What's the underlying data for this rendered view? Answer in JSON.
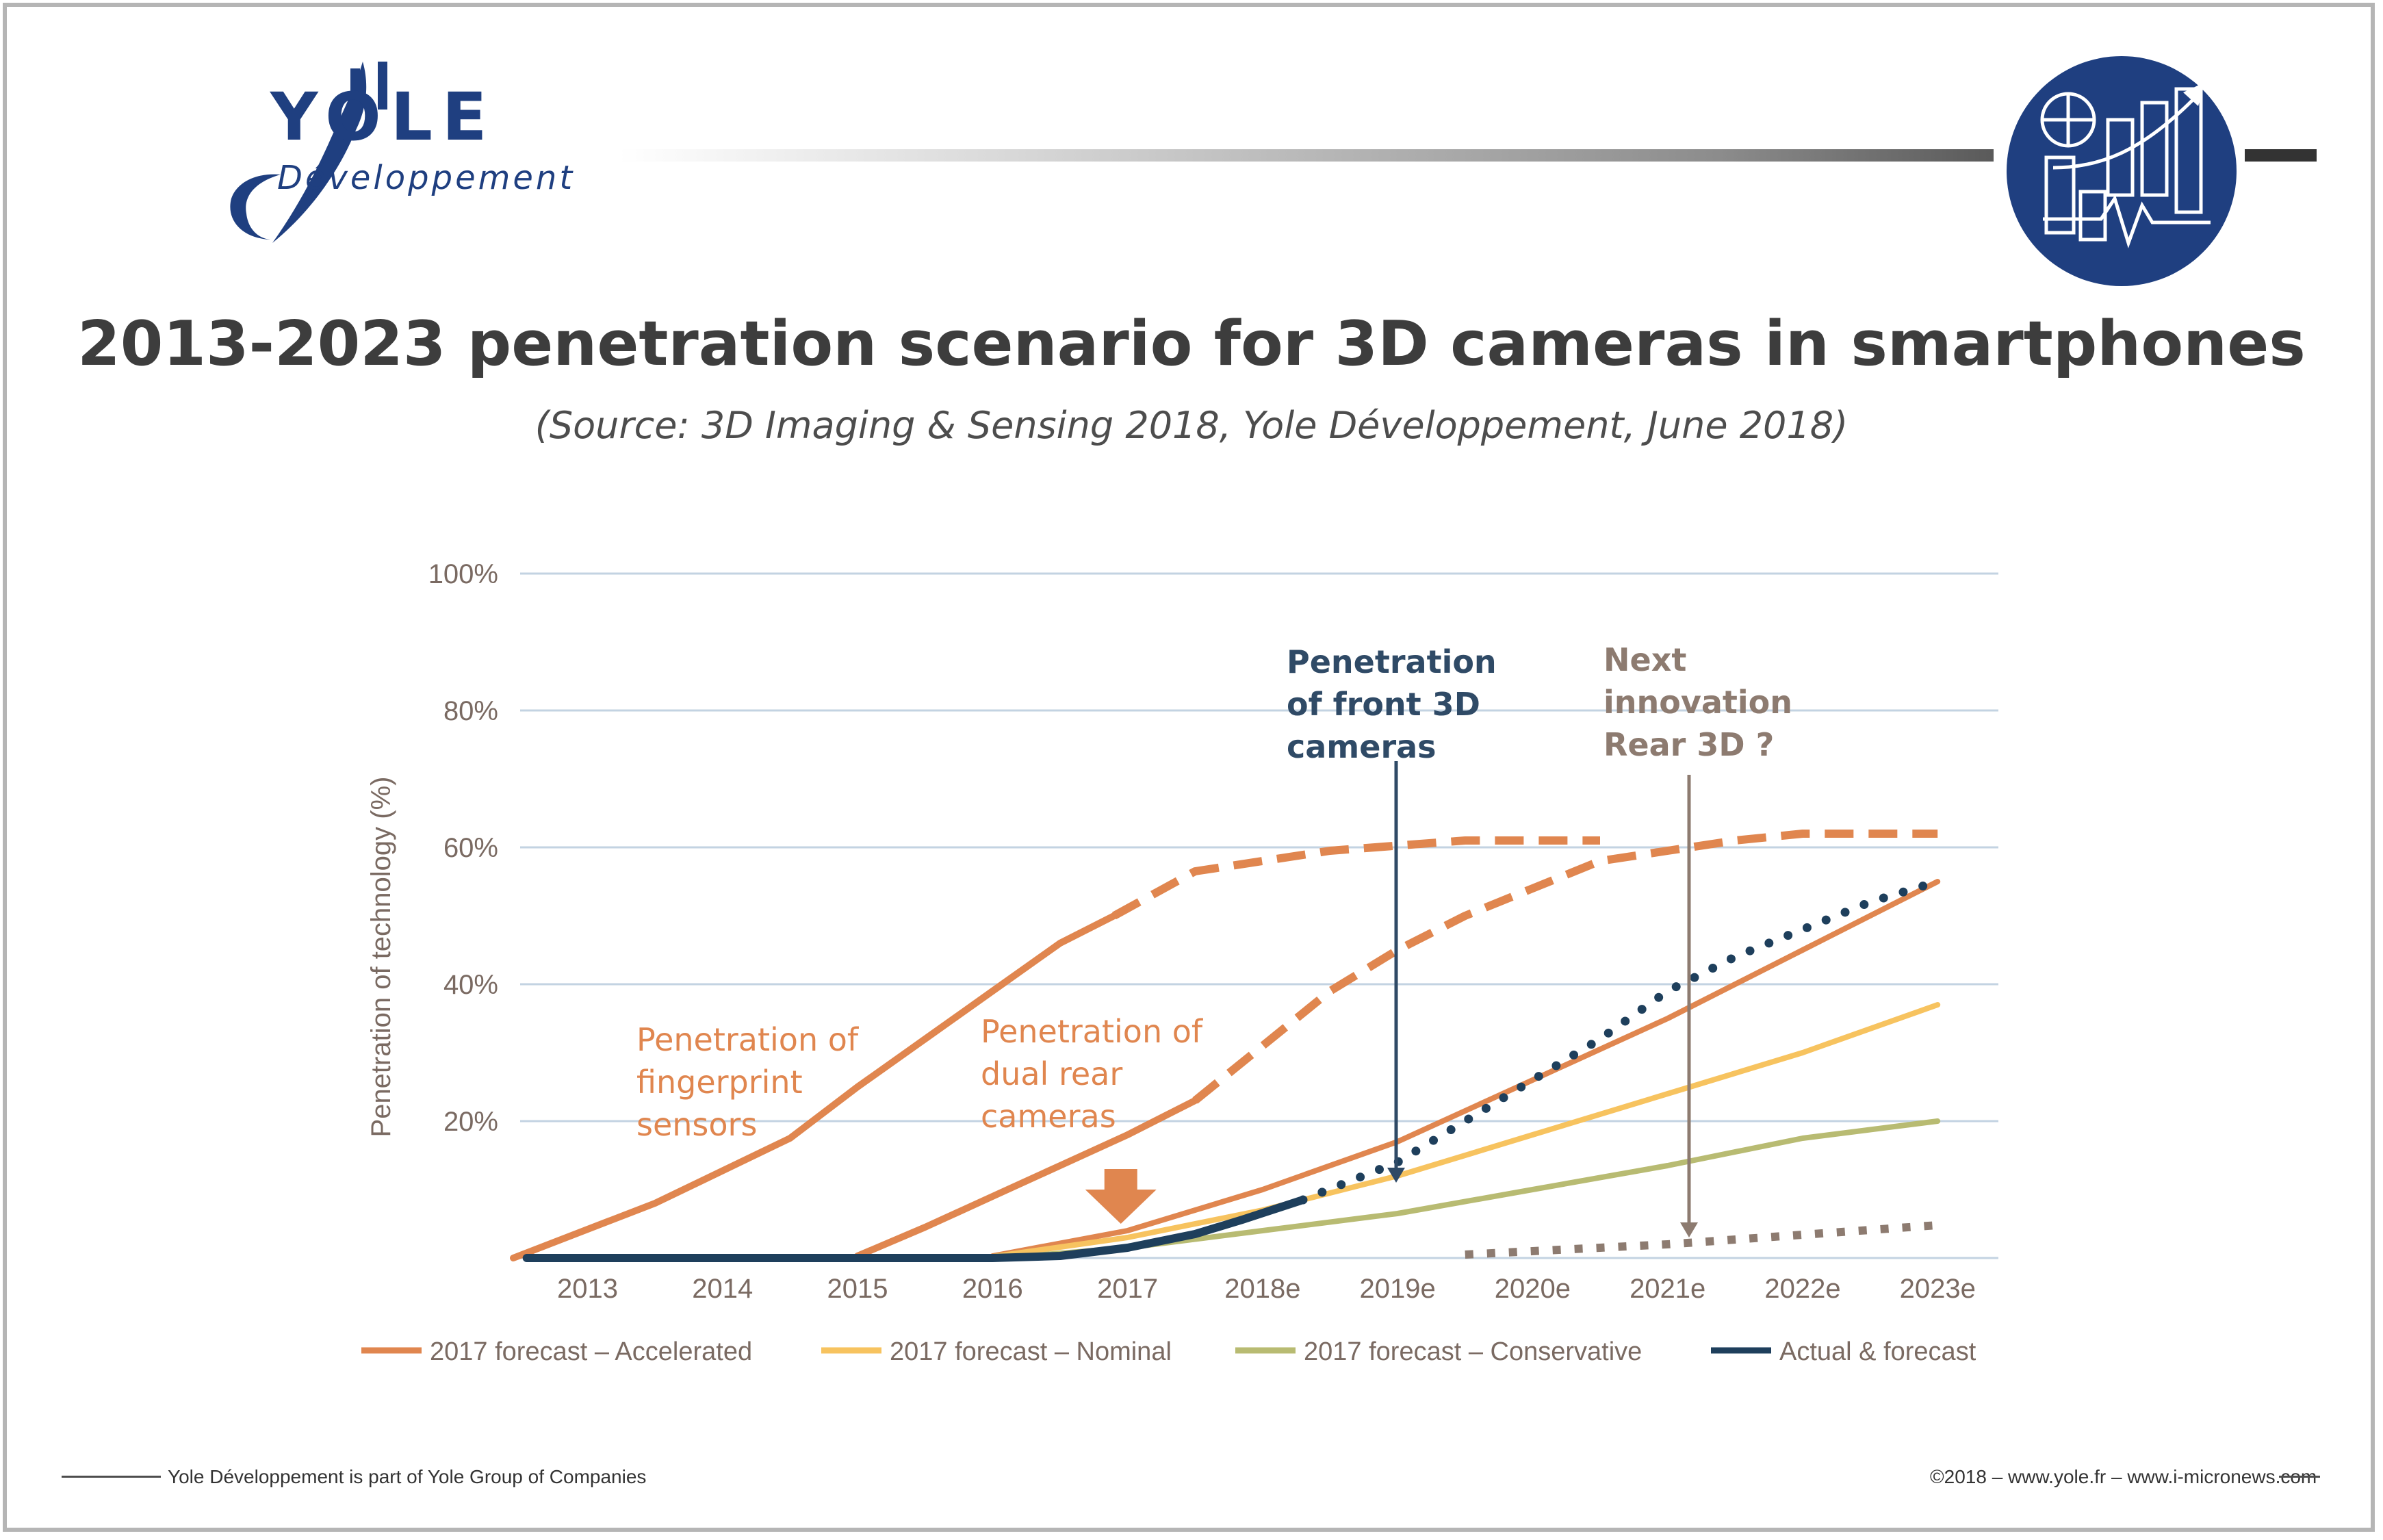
{
  "header": {
    "logo_word": "YOLE",
    "logo_sub": "Développement",
    "brand_color": "#1f3f80"
  },
  "title": "2013-2023 penetration scenario for 3D cameras in smartphones",
  "subtitle": "(Source: 3D Imaging & Sensing 2018, Yole Développement, June 2018)",
  "chart_data": {
    "type": "line",
    "ylabel": "Penetration of technology (%)",
    "yticks": [
      "20%",
      "40%",
      "60%",
      "80%",
      "100%"
    ],
    "ytick_values": [
      20,
      40,
      60,
      80,
      100
    ],
    "ylim": [
      0,
      100
    ],
    "x_domain": [
      2012.45,
      2023.45
    ],
    "categories": [
      "2013",
      "2014",
      "2015",
      "2016",
      "2017",
      "2018e",
      "2019e",
      "2020e",
      "2021e",
      "2022e",
      "2023e"
    ],
    "grid": true,
    "legend_position": "bottom",
    "series": [
      {
        "name": "2017 forecast – Accelerated",
        "color": "#e0864f",
        "x": [
          2016,
          2017,
          2018,
          2019,
          2020,
          2021,
          2022,
          2023
        ],
        "values": [
          0.3,
          4,
          10,
          17,
          26,
          35,
          45,
          55
        ]
      },
      {
        "name": "2017 forecast – Nominal",
        "color": "#f7c35f",
        "x": [
          2016,
          2017,
          2018,
          2019,
          2020,
          2021,
          2022,
          2023
        ],
        "values": [
          0.2,
          3,
          7,
          12,
          18,
          24,
          30,
          37
        ]
      },
      {
        "name": "2017 forecast – Conservative",
        "color": "#b8bb72",
        "x": [
          2016.2,
          2017,
          2018,
          2019,
          2020,
          2021,
          2022,
          2023
        ],
        "values": [
          0.2,
          1.5,
          4,
          6.5,
          10,
          13.5,
          17.5,
          20
        ]
      },
      {
        "name": "Actual & forecast",
        "color": "#1e3f5c",
        "x": [
          2012.55,
          2016,
          2016.5,
          2017,
          2017.5,
          2017.85,
          2018.3,
          2019,
          2019.5,
          2020,
          2020.5,
          2021,
          2021.5,
          2022,
          2022.5,
          2023
        ],
        "values": [
          0,
          0,
          0.3,
          1.5,
          3.5,
          5.6,
          8.5,
          14,
          20,
          26,
          32,
          39,
          44,
          48,
          52,
          55
        ]
      }
    ],
    "scenario_curves": [
      {
        "name": "fingerprint",
        "color": "#e0864f",
        "solid_x": [
          2012.45,
          2013.5,
          2014.5,
          2015,
          2015.5,
          2016,
          2016.5,
          2016.9
        ],
        "solid_y": [
          0,
          8,
          17.5,
          25,
          32,
          39,
          46,
          50
        ],
        "dashed_x": [
          2016.9,
          2017.5,
          2018.5,
          2019.5,
          2020.5
        ],
        "dashed_y": [
          50,
          56.5,
          59.5,
          61,
          61
        ]
      },
      {
        "name": "dual-rear",
        "color": "#e0864f",
        "solid_x": [
          2015,
          2015.5,
          2016,
          2016.5,
          2017,
          2017.5
        ],
        "solid_y": [
          0.3,
          4.5,
          9,
          13.5,
          18,
          23
        ],
        "dashed_x": [
          2017.5,
          2018,
          2018.5,
          2019,
          2019.5,
          2020,
          2020.5,
          2021,
          2021.5,
          2022,
          2022.5,
          2023
        ],
        "dashed_y": [
          23,
          31,
          39,
          45,
          50,
          54,
          58,
          59.5,
          61,
          62,
          62,
          62
        ]
      },
      {
        "name": "rear-3d",
        "color": "#8d7b70",
        "x": [
          2019.5,
          2020,
          2020.5,
          2021,
          2021.5,
          2022,
          2022.5,
          2023
        ],
        "y": [
          0.5,
          1,
          1.5,
          2,
          2.7,
          3.4,
          4.1,
          4.8
        ]
      }
    ],
    "annotations": [
      {
        "id": "fingerprint",
        "lines": [
          "Penetration of",
          "fingerprint",
          "sensors"
        ],
        "color": "#e0864f",
        "bold": false
      },
      {
        "id": "dual-rear",
        "lines": [
          "Penetration of",
          "dual rear",
          "cameras"
        ],
        "color": "#e0864f",
        "bold": false
      },
      {
        "id": "front-3d",
        "lines": [
          "Penetration",
          "of front 3D",
          "cameras"
        ],
        "color": "#2f4a66",
        "bold": true
      },
      {
        "id": "next-innovation",
        "lines": [
          "Next",
          "innovation",
          "Rear 3D ?"
        ],
        "color": "#8d7b70",
        "bold": true
      }
    ],
    "arrow_color": "#e0864f",
    "grid_color": "#c3d3e2",
    "axis_text_color": "#7a6a62"
  },
  "footer": {
    "left_text": "Yole Développement is part of Yole Group of Companies",
    "right_text": "©2018 – www.yole.fr – www.i-micronews.com"
  }
}
